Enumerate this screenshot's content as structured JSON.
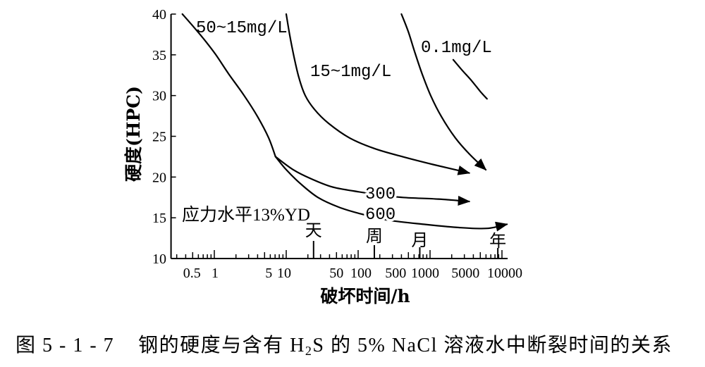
{
  "chart_data": {
    "type": "line",
    "xlabel": "破坏时间/h",
    "ylabel": "硬度(HPC)",
    "xscale": "log",
    "yscale": "linear",
    "xlim": [
      0.25,
      12000
    ],
    "ylim": [
      10,
      40
    ],
    "xticks": [
      0.5,
      1,
      5,
      10,
      50,
      100,
      500,
      1000,
      5000,
      10000
    ],
    "xtick_labels": [
      "0.5",
      "1",
      "5",
      "10",
      "50",
      "100",
      "500",
      "1000",
      "5000",
      "10000"
    ],
    "yticks": [
      10,
      15,
      20,
      25,
      30,
      35,
      40
    ],
    "ytick_labels": [
      "10",
      "15",
      "20",
      "25",
      "30",
      "35",
      "40"
    ],
    "grid": false,
    "legend": "none",
    "series": [
      {
        "name": "50~15mg/L",
        "x": [
          0.36,
          0.53,
          0.75,
          1.05,
          1.6,
          2.6,
          4.0,
          5.7,
          7.1
        ],
        "y": [
          40,
          38.3,
          36.7,
          35.0,
          32.6,
          30.0,
          27.4,
          24.8,
          22.5
        ],
        "arrow_end": false
      },
      {
        "name": "300",
        "x": [
          7.1,
          12.5,
          22,
          43,
          85,
          170,
          420,
          1300,
          3500
        ],
        "y": [
          22.5,
          20.9,
          19.8,
          18.8,
          18.3,
          17.9,
          17.5,
          17.3,
          17.0
        ],
        "arrow_end": true
      },
      {
        "name": "600",
        "x": [
          7.1,
          10,
          15.7,
          27.6,
          54,
          107,
          264,
          816,
          2520,
          6200,
          11700
        ],
        "y": [
          22.5,
          20.9,
          19.2,
          17.5,
          16.3,
          15.5,
          14.7,
          14.2,
          13.8,
          13.7,
          14.2
        ],
        "arrow_end": true
      },
      {
        "name": "15~1mg/L",
        "x": [
          10,
          11.2,
          12.8,
          15,
          18.4,
          24.7,
          38.7,
          76,
          168,
          415,
          1150,
          3500
        ],
        "y": [
          40,
          37.4,
          34.8,
          32.2,
          30.0,
          28.3,
          26.6,
          24.8,
          23.5,
          22.5,
          21.5,
          20.5
        ],
        "arrow_end": true
      },
      {
        "x": [
          400,
          500,
          620,
          780,
          1020,
          1440,
          2250,
          3540,
          5950
        ],
        "y": [
          40,
          37.8,
          35.2,
          32.6,
          30.0,
          27.4,
          24.8,
          22.8,
          20.9
        ],
        "arrow_end": true
      },
      {
        "name": "0.1mg/L",
        "x": [
          2100,
          2800,
          3800,
          5000,
          6200
        ],
        "y": [
          34.4,
          33.1,
          31.8,
          30.5,
          29.6
        ],
        "arrow_end": false
      }
    ],
    "annotations": [
      "应力水平13%YD"
    ],
    "time_marks": [
      {
        "label": "天",
        "x": 24
      },
      {
        "label": "周",
        "x": 168
      },
      {
        "label": "月",
        "x": 720
      },
      {
        "label": "年",
        "x": 8760
      }
    ]
  },
  "style": {
    "line_color": "#000000",
    "background": "#ffffff"
  },
  "caption": {
    "number": "图 5 - 1 - 7",
    "text_before_sub": "钢的硬度与含有 H",
    "subscript": "2",
    "text_after_sub": "S 的 5% NaCl 溶液水中断裂时间的关系"
  }
}
